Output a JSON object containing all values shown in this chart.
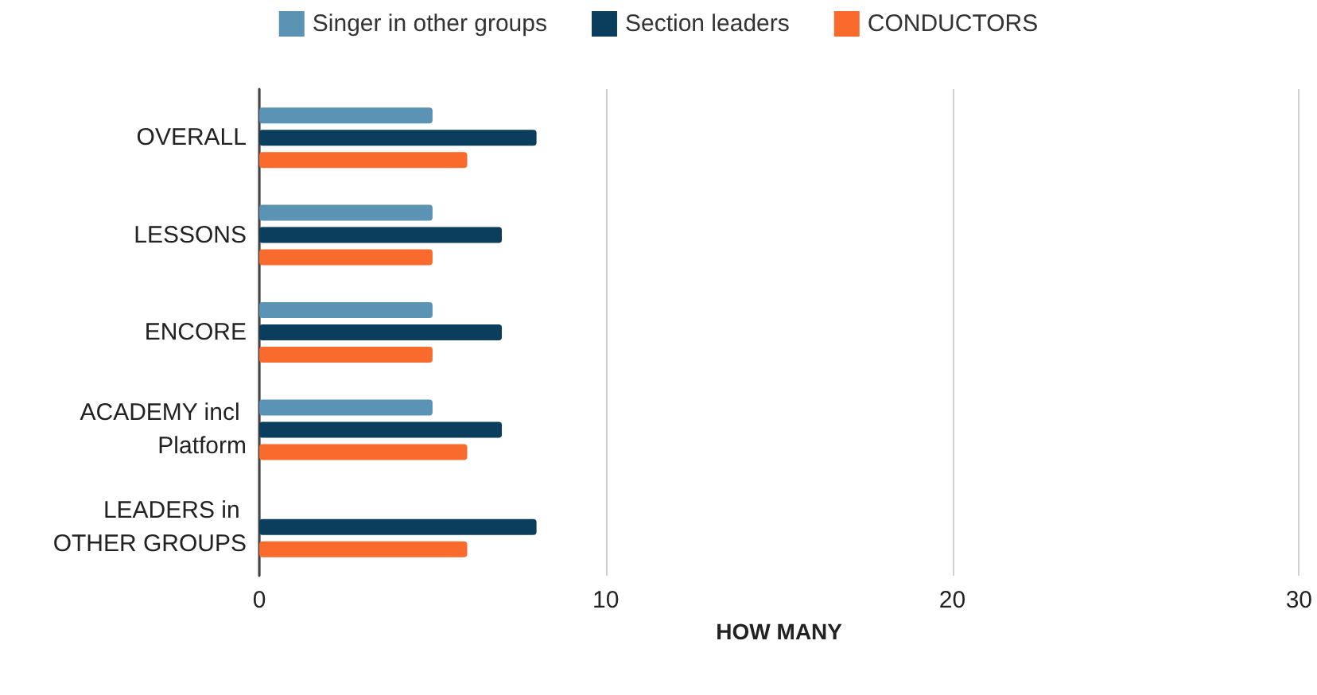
{
  "chart_data": {
    "type": "bar",
    "orientation": "horizontal",
    "xlabel": "HOW MANY",
    "categories": [
      "OVERALL",
      "LESSONS",
      "ENCORE",
      "ACADEMY incl Platform",
      "LEADERS in OTHER GROUPS"
    ],
    "series": [
      {
        "name": "Singer in other groups",
        "color": "#5b93b5",
        "values": [
          5,
          5,
          5,
          5,
          null
        ]
      },
      {
        "name": "Section leaders",
        "color": "#0b3d5c",
        "values": [
          8,
          7,
          7,
          7,
          8
        ]
      },
      {
        "name": "CONDUCTORS",
        "color": "#f96b2d",
        "values": [
          6,
          5,
          5,
          6,
          6
        ]
      }
    ],
    "xlim": [
      0,
      30
    ],
    "xticks": [
      0,
      10,
      20,
      30
    ],
    "grid": "x",
    "legend": "top"
  }
}
